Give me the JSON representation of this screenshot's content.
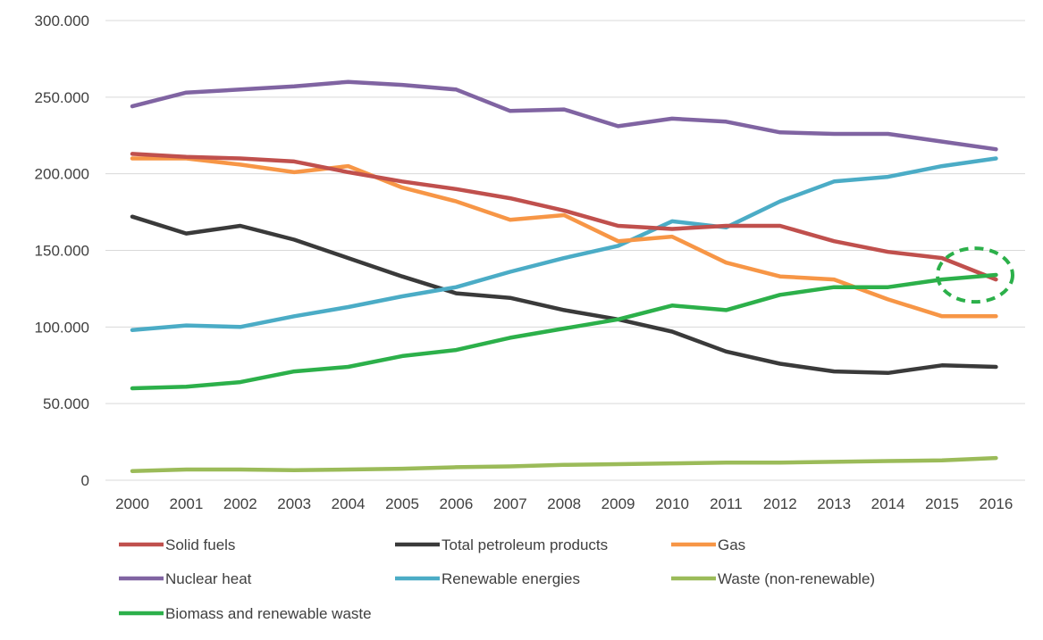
{
  "chart_data": {
    "type": "line",
    "title": "",
    "xlabel": "",
    "ylabel": "",
    "ylim": [
      0,
      300000
    ],
    "y_ticks": [
      0,
      50000,
      100000,
      150000,
      200000,
      250000,
      300000
    ],
    "y_tick_labels": [
      "0",
      "50.000",
      "100.000",
      "150.000",
      "200.000",
      "250.000",
      "300.000"
    ],
    "grid": true,
    "legend_position": "bottom",
    "categories": [
      "2000",
      "2001",
      "2002",
      "2003",
      "2004",
      "2005",
      "2006",
      "2007",
      "2008",
      "2009",
      "2010",
      "2011",
      "2012",
      "2013",
      "2014",
      "2015",
      "2016"
    ],
    "series": [
      {
        "name": "Solid fuels",
        "color": "#c0504d",
        "values": [
          213000,
          211000,
          210000,
          208000,
          201000,
          195000,
          190000,
          184000,
          176000,
          166000,
          164000,
          166000,
          166000,
          156000,
          149000,
          145000,
          131000
        ]
      },
      {
        "name": "Total petroleum products",
        "color": "#3a3a3a",
        "values": [
          172000,
          161000,
          166000,
          157000,
          145000,
          133000,
          122000,
          119000,
          111000,
          105000,
          97000,
          84000,
          76000,
          71000,
          70000,
          75000,
          74000
        ]
      },
      {
        "name": "Gas",
        "color": "#f79646",
        "values": [
          210000,
          210000,
          206000,
          201000,
          205000,
          191000,
          182000,
          170000,
          173000,
          156000,
          159000,
          142000,
          133000,
          131000,
          118000,
          107000,
          107000
        ]
      },
      {
        "name": "Nuclear heat",
        "color": "#8064a2",
        "values": [
          244000,
          253000,
          255000,
          257000,
          260000,
          258000,
          255000,
          241000,
          242000,
          231000,
          236000,
          234000,
          227000,
          226000,
          226000,
          221000,
          216000
        ]
      },
      {
        "name": "Renewable energies",
        "color": "#4bacc6",
        "values": [
          98000,
          101000,
          100000,
          107000,
          113000,
          120000,
          126000,
          136000,
          145000,
          153000,
          169000,
          165000,
          182000,
          195000,
          198000,
          205000,
          210000
        ]
      },
      {
        "name": "Waste (non-renewable)",
        "color": "#9bbb59",
        "values": [
          6000,
          7000,
          7000,
          6500,
          7000,
          7500,
          8500,
          9000,
          10000,
          10500,
          11000,
          11500,
          11500,
          12000,
          12500,
          13000,
          14500
        ]
      },
      {
        "name": "Biomass and renewable waste",
        "color": "#2cb04a",
        "values": [
          60000,
          61000,
          64000,
          71000,
          74000,
          81000,
          85000,
          93000,
          99000,
          105000,
          114000,
          111000,
          121000,
          126000,
          126000,
          131000,
          134000
        ]
      }
    ],
    "annotations": [
      {
        "type": "dashed-ellipse",
        "color": "#2cb04a",
        "center_x": "2015.6",
        "center_y": 131000
      }
    ]
  }
}
